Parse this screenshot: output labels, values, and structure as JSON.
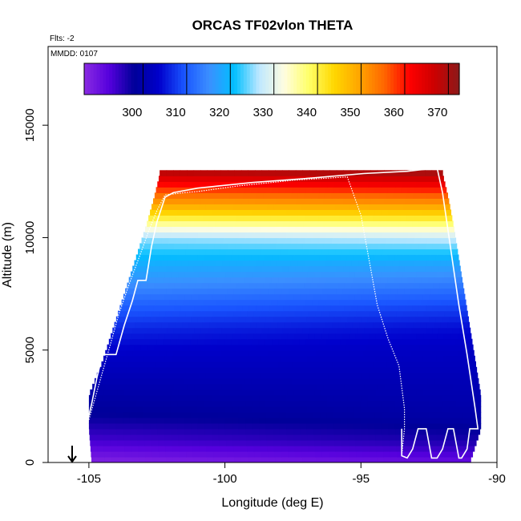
{
  "chart_data": {
    "type": "heatmap",
    "title": "ORCAS TF02vlon THETA",
    "flights_label": "Flts: -2",
    "date_label": "MMDD: 0107",
    "xlabel": "Longitude (deg E)",
    "ylabel": "Altitude (m)",
    "xlim": [
      -106.5,
      -90
    ],
    "ylim": [
      0,
      18500
    ],
    "x_ticks": [
      -105,
      -100,
      -95,
      -90
    ],
    "x_tick_labels": [
      "-105",
      "-100",
      "-95",
      "-90"
    ],
    "y_ticks": [
      0,
      5000,
      10000,
      15000
    ],
    "y_tick_labels": [
      "0",
      "5000",
      "10000",
      "15000"
    ],
    "colorbar": {
      "range": [
        289,
        375
      ],
      "ticks": [
        300,
        310,
        320,
        330,
        340,
        350,
        360,
        370
      ],
      "tick_labels": [
        "300",
        "310",
        "320",
        "330",
        "340",
        "350",
        "360",
        "370"
      ],
      "colors": [
        "#8a2be2",
        "#5500dd",
        "#000099",
        "#0000cc",
        "#1a55ff",
        "#3b8fff",
        "#00bfff",
        "#bfe8ff",
        "#fffde0",
        "#ffff66",
        "#ffd700",
        "#ffa500",
        "#ff6600",
        "#ff0000",
        "#cc0000",
        "#8b1a1a"
      ]
    },
    "theta_profile": {
      "altitudes": [
        0,
        1000,
        2000,
        3000,
        4000,
        5000,
        6000,
        7000,
        8000,
        9000,
        10000,
        10500,
        11000,
        11500,
        12000,
        12500,
        13000
      ],
      "theta_west": [
        290,
        296,
        300,
        302,
        304,
        306,
        309,
        313,
        318,
        322,
        328,
        336,
        345,
        352,
        358,
        365,
        372
      ],
      "theta_east": [
        293,
        299,
        302,
        303,
        304,
        305,
        307,
        311,
        316,
        321,
        330,
        338,
        346,
        353,
        360,
        367,
        374
      ]
    },
    "coverage_boundary": {
      "west": [
        [
          0,
          -104.9
        ],
        [
          1500,
          -105.0
        ],
        [
          3000,
          -105.0
        ],
        [
          4500,
          -104.5
        ],
        [
          6000,
          -104.1
        ],
        [
          7500,
          -103.7
        ],
        [
          9000,
          -103.3
        ],
        [
          10500,
          -102.9
        ],
        [
          11800,
          -102.6
        ],
        [
          12800,
          -102.4
        ]
      ],
      "east": [
        [
          0,
          -91.0
        ],
        [
          1500,
          -90.6
        ],
        [
          3000,
          -90.6
        ],
        [
          4500,
          -90.8
        ],
        [
          6000,
          -91.0
        ],
        [
          7500,
          -91.2
        ],
        [
          9000,
          -91.4
        ],
        [
          10500,
          -91.6
        ],
        [
          11800,
          -91.8
        ],
        [
          12800,
          -92.0
        ]
      ]
    },
    "flight_tracks": [
      {
        "points": [
          [
            -105.1,
            1600
          ],
          [
            -104.9,
            2600
          ],
          [
            -104.7,
            3800
          ],
          [
            -104.5,
            4800
          ],
          [
            -104.0,
            4800
          ],
          [
            -103.7,
            6100
          ],
          [
            -103.4,
            7200
          ],
          [
            -103.2,
            8100
          ],
          [
            -102.9,
            8100
          ],
          [
            -102.7,
            9600
          ],
          [
            -102.5,
            10700
          ],
          [
            -102.2,
            11800
          ],
          [
            -101.9,
            12000
          ],
          [
            -101.0,
            12200
          ],
          [
            -99.0,
            12450
          ],
          [
            -96.8,
            12650
          ],
          [
            -94.9,
            12850
          ],
          [
            -93.3,
            12950
          ],
          [
            -92.2,
            13100
          ],
          [
            -92.0,
            12000
          ],
          [
            -91.7,
            9500
          ],
          [
            -91.4,
            7000
          ],
          [
            -91.1,
            4800
          ],
          [
            -90.8,
            2400
          ],
          [
            -90.7,
            1500
          ],
          [
            -91.0,
            1500
          ],
          [
            -91.1,
            600
          ],
          [
            -91.3,
            200
          ],
          [
            -91.4,
            200
          ],
          [
            -91.6,
            1500
          ],
          [
            -91.8,
            1500
          ],
          [
            -92.0,
            600
          ],
          [
            -92.2,
            200
          ],
          [
            -92.4,
            200
          ],
          [
            -92.6,
            1500
          ],
          [
            -92.9,
            1500
          ],
          [
            -93.1,
            600
          ],
          [
            -93.3,
            200
          ],
          [
            -93.5,
            300
          ],
          [
            -93.5,
            1500
          ]
        ]
      },
      {
        "points": [
          [
            -105.0,
            1900
          ],
          [
            -104.6,
            3600
          ],
          [
            -104.2,
            5300
          ],
          [
            -103.9,
            6600
          ],
          [
            -103.5,
            8000
          ],
          [
            -103.1,
            9300
          ],
          [
            -102.8,
            10300
          ],
          [
            -102.5,
            11200
          ],
          [
            -102.2,
            11900
          ],
          [
            -101.5,
            12000
          ],
          [
            -101.0,
            12050
          ],
          [
            -99.5,
            12300
          ],
          [
            -97.5,
            12550
          ],
          [
            -95.5,
            12700
          ],
          [
            -95.0,
            11000
          ],
          [
            -94.7,
            9000
          ],
          [
            -94.4,
            7000
          ],
          [
            -94.0,
            5500
          ],
          [
            -93.6,
            4300
          ],
          [
            -93.4,
            2400
          ],
          [
            -93.4,
            1500
          ],
          [
            -93.5,
            300
          ]
        ]
      }
    ]
  }
}
